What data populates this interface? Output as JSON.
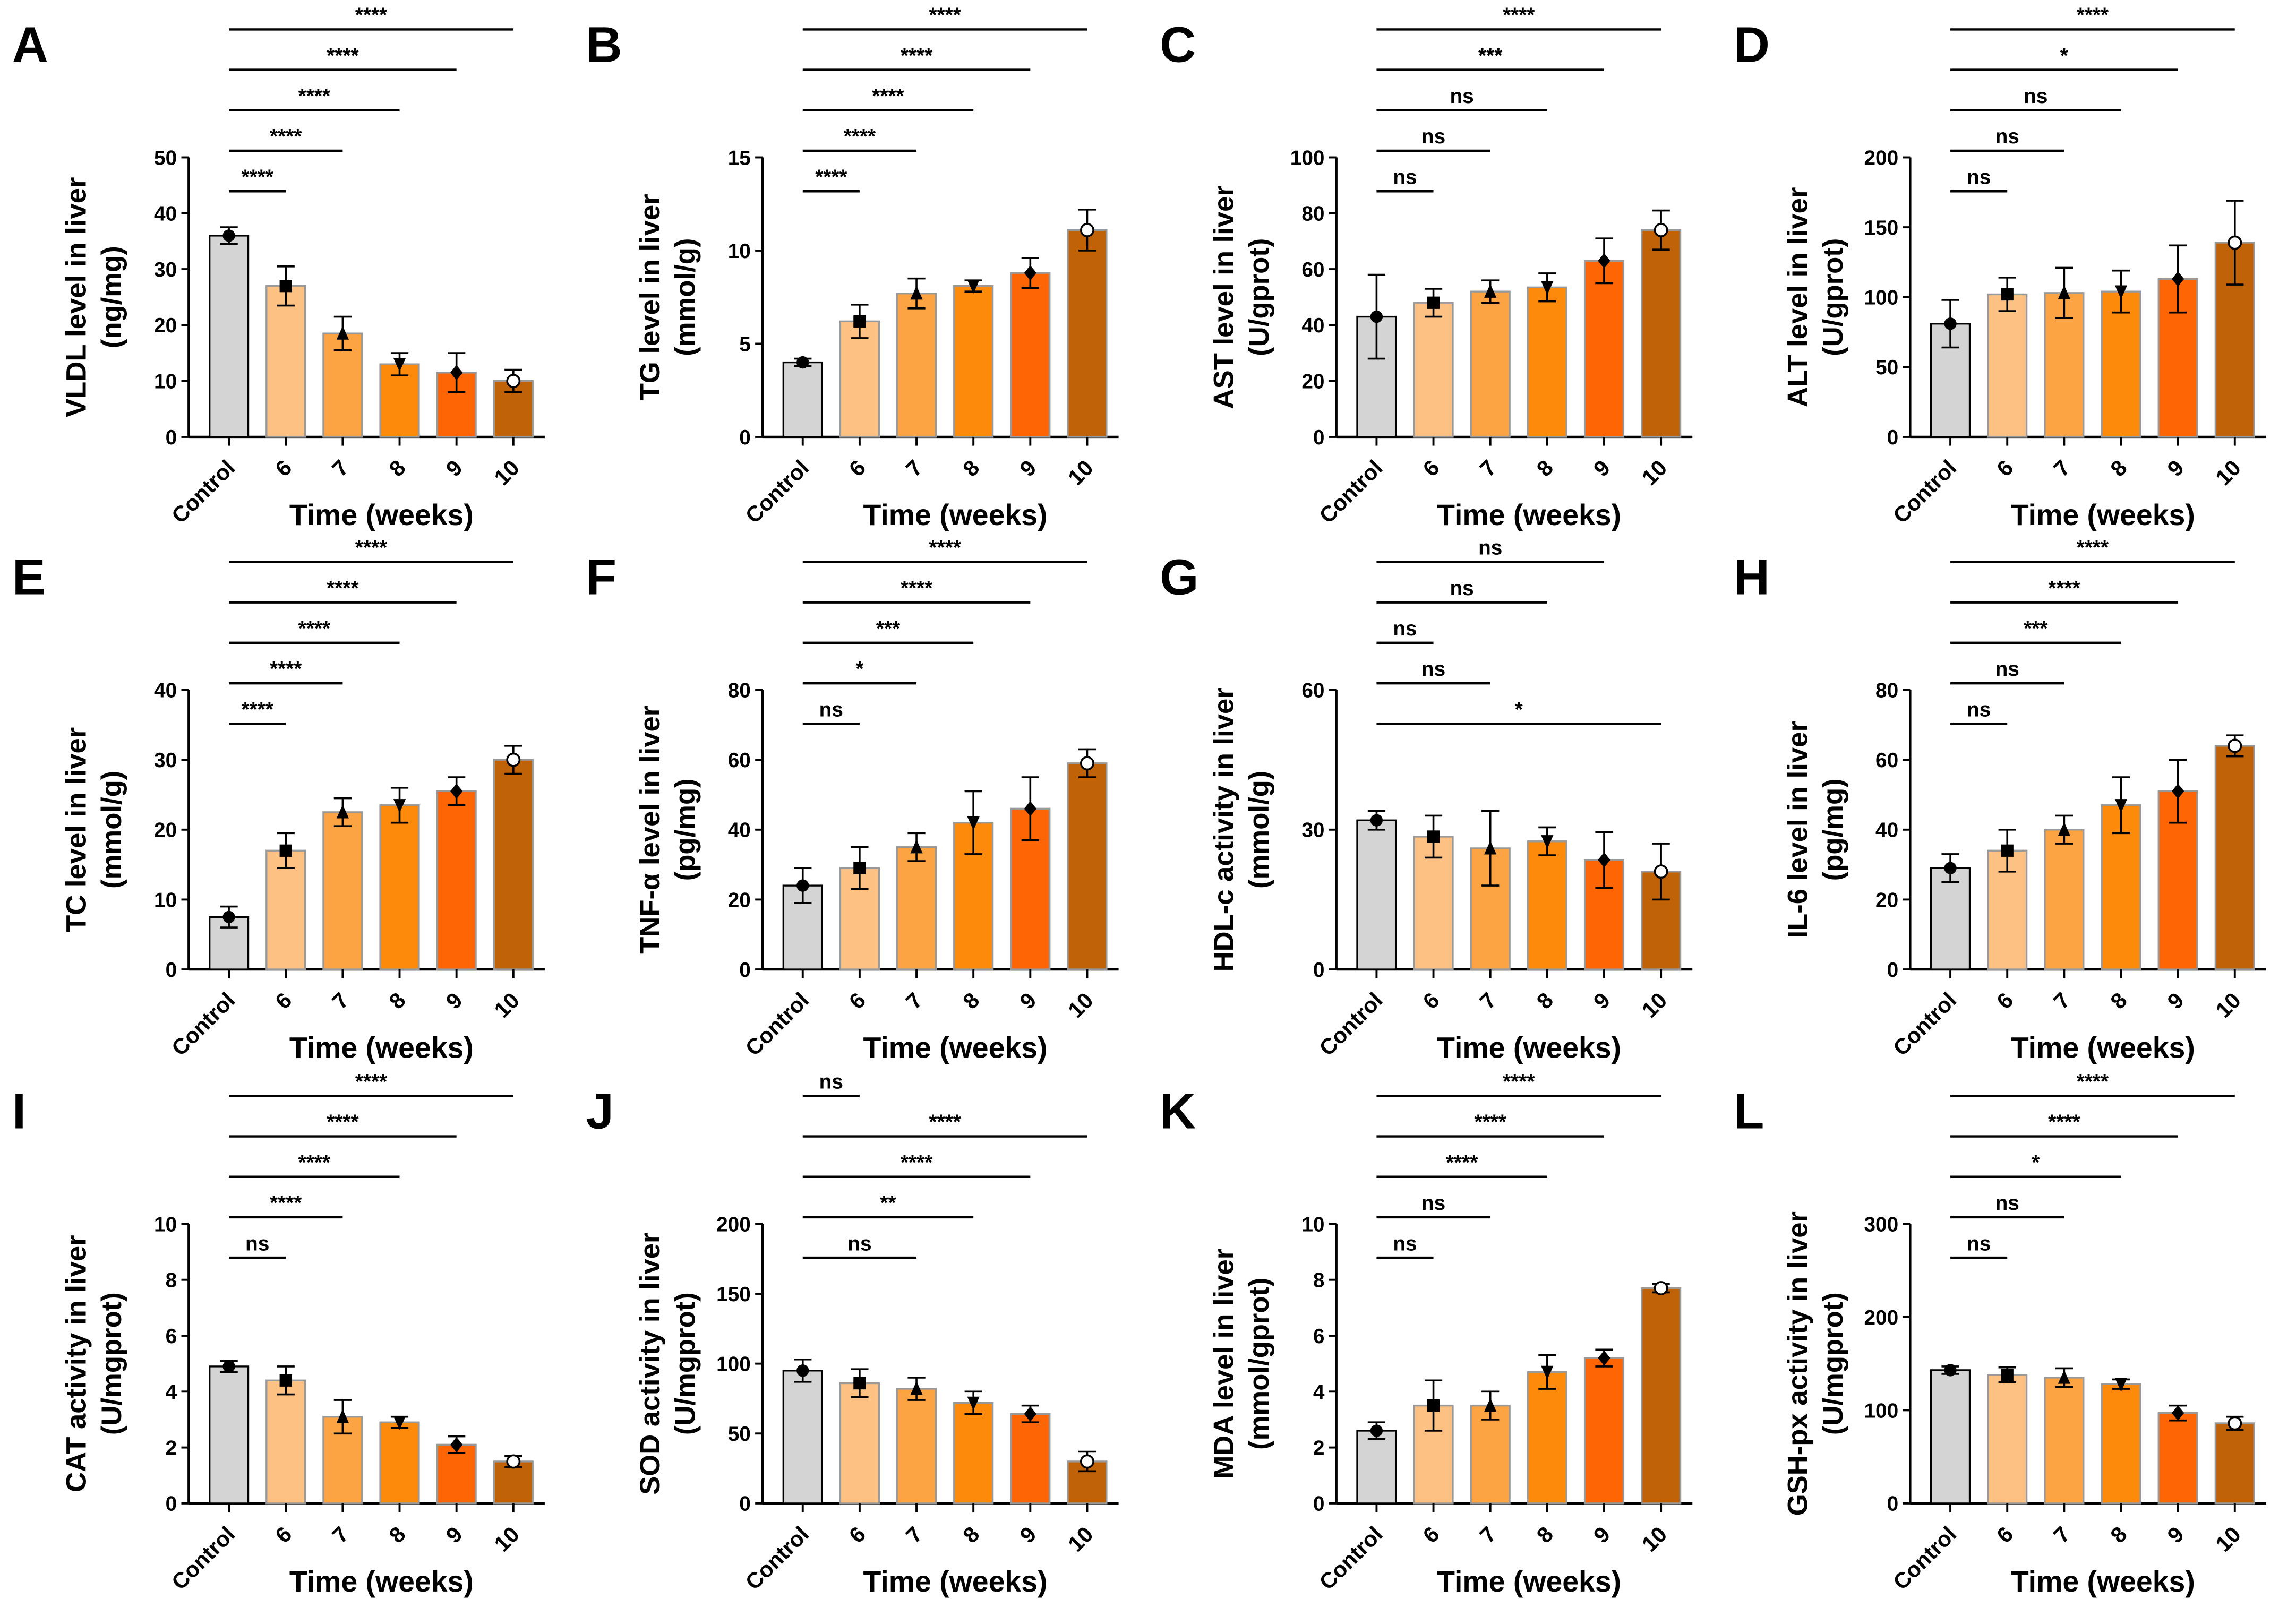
{
  "colors": {
    "Control": "#d4d4d4",
    "6": "#fdc184",
    "7": "#fca443",
    "8": "#fd8a0a",
    "9": "#fe6505",
    "10": "#c06308"
  },
  "markers": {
    "Control": "circle",
    "6": "square",
    "7": "triangle",
    "8": "triangle-down",
    "9": "diamond",
    "10": "open-circle"
  },
  "chart_data": [
    {
      "type": "bar",
      "letter": "A",
      "ylabel": [
        "VLDL level in liver",
        "(ng/mg)"
      ],
      "xlabel": "Time (weeks)",
      "categories": [
        "Control",
        "6",
        "7",
        "8",
        "9",
        "10"
      ],
      "ylim": [
        0,
        50
      ],
      "ticks": [
        0,
        10,
        20,
        30,
        40,
        50
      ],
      "values": [
        36,
        27,
        18.5,
        13,
        11.5,
        10
      ],
      "sd": [
        1.5,
        3.5,
        3,
        2,
        3.5,
        2
      ],
      "significance": [
        {
          "vs": "10",
          "label": "****"
        },
        {
          "vs": "9",
          "label": "****"
        },
        {
          "vs": "8",
          "label": "****"
        },
        {
          "vs": "7",
          "label": "****"
        },
        {
          "vs": "6",
          "label": "****"
        }
      ]
    },
    {
      "type": "bar",
      "letter": "B",
      "ylabel": [
        "TG level in liver",
        "(mmol/g)"
      ],
      "xlabel": "Time (weeks)",
      "categories": [
        "Control",
        "6",
        "7",
        "8",
        "9",
        "10"
      ],
      "ylim": [
        0,
        15
      ],
      "ticks": [
        0,
        5,
        10,
        15
      ],
      "values": [
        4,
        6.2,
        7.7,
        8.1,
        8.8,
        11.1
      ],
      "sd": [
        0.2,
        0.9,
        0.8,
        0.3,
        0.8,
        1.1
      ],
      "significance": [
        {
          "vs": "10",
          "label": "****"
        },
        {
          "vs": "9",
          "label": "****"
        },
        {
          "vs": "8",
          "label": "****"
        },
        {
          "vs": "7",
          "label": "****"
        },
        {
          "vs": "6",
          "label": "****"
        }
      ]
    },
    {
      "type": "bar",
      "letter": "C",
      "ylabel": [
        "AST level in liver",
        "(U/gprot)"
      ],
      "xlabel": "Time (weeks)",
      "categories": [
        "Control",
        "6",
        "7",
        "8",
        "9",
        "10"
      ],
      "ylim": [
        0,
        100
      ],
      "ticks": [
        0,
        20,
        40,
        60,
        80,
        100
      ],
      "values": [
        43,
        48,
        52,
        53.5,
        63,
        74
      ],
      "sd": [
        15,
        5,
        4,
        5,
        8,
        7
      ],
      "significance": [
        {
          "vs": "10",
          "label": "****"
        },
        {
          "vs": "9",
          "label": "***"
        },
        {
          "vs": "8",
          "label": "ns"
        },
        {
          "vs": "7",
          "label": "ns"
        },
        {
          "vs": "6",
          "label": "ns"
        }
      ]
    },
    {
      "type": "bar",
      "letter": "D",
      "ylabel": [
        "ALT level in liver",
        "(U/gprot)"
      ],
      "xlabel": "Time (weeks)",
      "categories": [
        "Control",
        "6",
        "7",
        "8",
        "9",
        "10"
      ],
      "ylim": [
        0,
        200
      ],
      "ticks": [
        0,
        50,
        100,
        150,
        200
      ],
      "values": [
        81,
        102,
        103,
        104,
        113,
        139
      ],
      "sd": [
        17,
        12,
        18,
        15,
        24,
        30
      ],
      "significance": [
        {
          "vs": "10",
          "label": "****"
        },
        {
          "vs": "9",
          "label": "*"
        },
        {
          "vs": "8",
          "label": "ns"
        },
        {
          "vs": "7",
          "label": "ns"
        },
        {
          "vs": "6",
          "label": "ns"
        }
      ]
    },
    {
      "type": "bar",
      "letter": "E",
      "ylabel": [
        "TC level in liver",
        "(mmol/g)"
      ],
      "xlabel": "Time (weeks)",
      "categories": [
        "Control",
        "6",
        "7",
        "8",
        "9",
        "10"
      ],
      "ylim": [
        0,
        40
      ],
      "ticks": [
        0,
        10,
        20,
        30,
        40
      ],
      "values": [
        7.5,
        17,
        22.5,
        23.5,
        25.5,
        30
      ],
      "sd": [
        1.5,
        2.5,
        2,
        2.5,
        2,
        2
      ],
      "significance": [
        {
          "vs": "10",
          "label": "****"
        },
        {
          "vs": "9",
          "label": "****"
        },
        {
          "vs": "8",
          "label": "****"
        },
        {
          "vs": "7",
          "label": "****"
        },
        {
          "vs": "6",
          "label": "****"
        }
      ]
    },
    {
      "type": "bar",
      "letter": "F",
      "ylabel": [
        "TNF-α level in liver",
        "(pg/mg)"
      ],
      "xlabel": "Time (weeks)",
      "categories": [
        "Control",
        "6",
        "7",
        "8",
        "9",
        "10"
      ],
      "ylim": [
        0,
        80
      ],
      "ticks": [
        0,
        20,
        40,
        60,
        80
      ],
      "values": [
        24,
        29,
        35,
        42,
        46,
        59
      ],
      "sd": [
        5,
        6,
        4,
        9,
        9,
        4
      ],
      "significance": [
        {
          "vs": "10",
          "label": "****"
        },
        {
          "vs": "9",
          "label": "****"
        },
        {
          "vs": "8",
          "label": "***"
        },
        {
          "vs": "7",
          "label": "*"
        },
        {
          "vs": "6",
          "label": "ns"
        }
      ]
    },
    {
      "type": "bar",
      "letter": "G",
      "ylabel": [
        "HDL-c activity in liver",
        "(mmol/g)"
      ],
      "xlabel": "Time (weeks)",
      "categories": [
        "Control",
        "6",
        "7",
        "8",
        "9",
        "10"
      ],
      "ylim": [
        0,
        60
      ],
      "ticks": [
        0,
        30,
        60
      ],
      "values": [
        32,
        28.5,
        26,
        27.5,
        23.5,
        21
      ],
      "sd": [
        2,
        4.5,
        8,
        3,
        6,
        6
      ],
      "significance": [
        {
          "vs": "9",
          "label": "ns"
        },
        {
          "vs": "8",
          "label": "ns"
        },
        {
          "vs": "6",
          "label": "ns"
        },
        {
          "vs": "7",
          "label": "ns"
        },
        {
          "vs": "10",
          "label": "*"
        }
      ]
    },
    {
      "type": "bar",
      "letter": "H",
      "ylabel": [
        "IL-6 level in liver",
        "(pg/mg)"
      ],
      "xlabel": "Time (weeks)",
      "categories": [
        "Control",
        "6",
        "7",
        "8",
        "9",
        "10"
      ],
      "ylim": [
        0,
        80
      ],
      "ticks": [
        0,
        20,
        40,
        60,
        80
      ],
      "values": [
        29,
        34,
        40,
        47,
        51,
        64
      ],
      "sd": [
        4,
        6,
        4,
        8,
        9,
        3
      ],
      "significance": [
        {
          "vs": "10",
          "label": "****"
        },
        {
          "vs": "9",
          "label": "****"
        },
        {
          "vs": "8",
          "label": "***"
        },
        {
          "vs": "7",
          "label": "ns"
        },
        {
          "vs": "6",
          "label": "ns"
        }
      ]
    },
    {
      "type": "bar",
      "letter": "I",
      "ylabel": [
        "CAT activity in liver",
        "(U/mgprot)"
      ],
      "xlabel": "Time (weeks)",
      "categories": [
        "Control",
        "6",
        "7",
        "8",
        "9",
        "10"
      ],
      "ylim": [
        0,
        10
      ],
      "ticks": [
        0,
        2,
        4,
        6,
        8,
        10
      ],
      "values": [
        4.9,
        4.4,
        3.1,
        2.9,
        2.1,
        1.5
      ],
      "sd": [
        0.2,
        0.5,
        0.6,
        0.2,
        0.3,
        0.2
      ],
      "significance": [
        {
          "vs": "10",
          "label": "****"
        },
        {
          "vs": "9",
          "label": "****"
        },
        {
          "vs": "8",
          "label": "****"
        },
        {
          "vs": "7",
          "label": "****"
        },
        {
          "vs": "6",
          "label": "ns"
        }
      ]
    },
    {
      "type": "bar",
      "letter": "J",
      "ylabel": [
        "SOD activity in liver",
        "(U/mgprot)"
      ],
      "xlabel": "Time (weeks)",
      "categories": [
        "Control",
        "6",
        "7",
        "8",
        "9",
        "10"
      ],
      "ylim": [
        0,
        200
      ],
      "ticks": [
        0,
        50,
        100,
        150,
        200
      ],
      "values": [
        95,
        86,
        82,
        72,
        64,
        30
      ],
      "sd": [
        8,
        10,
        8,
        8,
        6,
        7
      ],
      "significance": [
        {
          "vs": "6",
          "label": "ns"
        },
        {
          "vs": "10",
          "label": "****"
        },
        {
          "vs": "9",
          "label": "****"
        },
        {
          "vs": "8",
          "label": "**"
        },
        {
          "vs": "7",
          "label": "ns"
        }
      ]
    },
    {
      "type": "bar",
      "letter": "K",
      "ylabel": [
        "MDA level in liver",
        "(mmol/gprot)"
      ],
      "xlabel": "Time (weeks)",
      "categories": [
        "Control",
        "6",
        "7",
        "8",
        "9",
        "10"
      ],
      "ylim": [
        0,
        10
      ],
      "ticks": [
        0,
        2,
        4,
        6,
        8,
        10
      ],
      "values": [
        2.6,
        3.5,
        3.5,
        4.7,
        5.2,
        7.7
      ],
      "sd": [
        0.3,
        0.9,
        0.5,
        0.6,
        0.3,
        0.15
      ],
      "significance": [
        {
          "vs": "10",
          "label": "****"
        },
        {
          "vs": "9",
          "label": "****"
        },
        {
          "vs": "8",
          "label": "****"
        },
        {
          "vs": "7",
          "label": "ns"
        },
        {
          "vs": "6",
          "label": "ns"
        }
      ]
    },
    {
      "type": "bar",
      "letter": "L",
      "ylabel": [
        "GSH-px activity in liver",
        "(U/mgprot)"
      ],
      "xlabel": "Time (weeks)",
      "categories": [
        "Control",
        "6",
        "7",
        "8",
        "9",
        "10"
      ],
      "ylim": [
        0,
        300
      ],
      "ticks": [
        0,
        100,
        200,
        300
      ],
      "values": [
        143,
        138,
        135,
        128,
        97,
        86
      ],
      "sd": [
        4,
        8,
        10,
        5,
        8,
        7
      ],
      "significance": [
        {
          "vs": "10",
          "label": "****"
        },
        {
          "vs": "9",
          "label": "****"
        },
        {
          "vs": "8",
          "label": "*"
        },
        {
          "vs": "7",
          "label": "ns"
        },
        {
          "vs": "6",
          "label": "ns"
        }
      ]
    }
  ]
}
